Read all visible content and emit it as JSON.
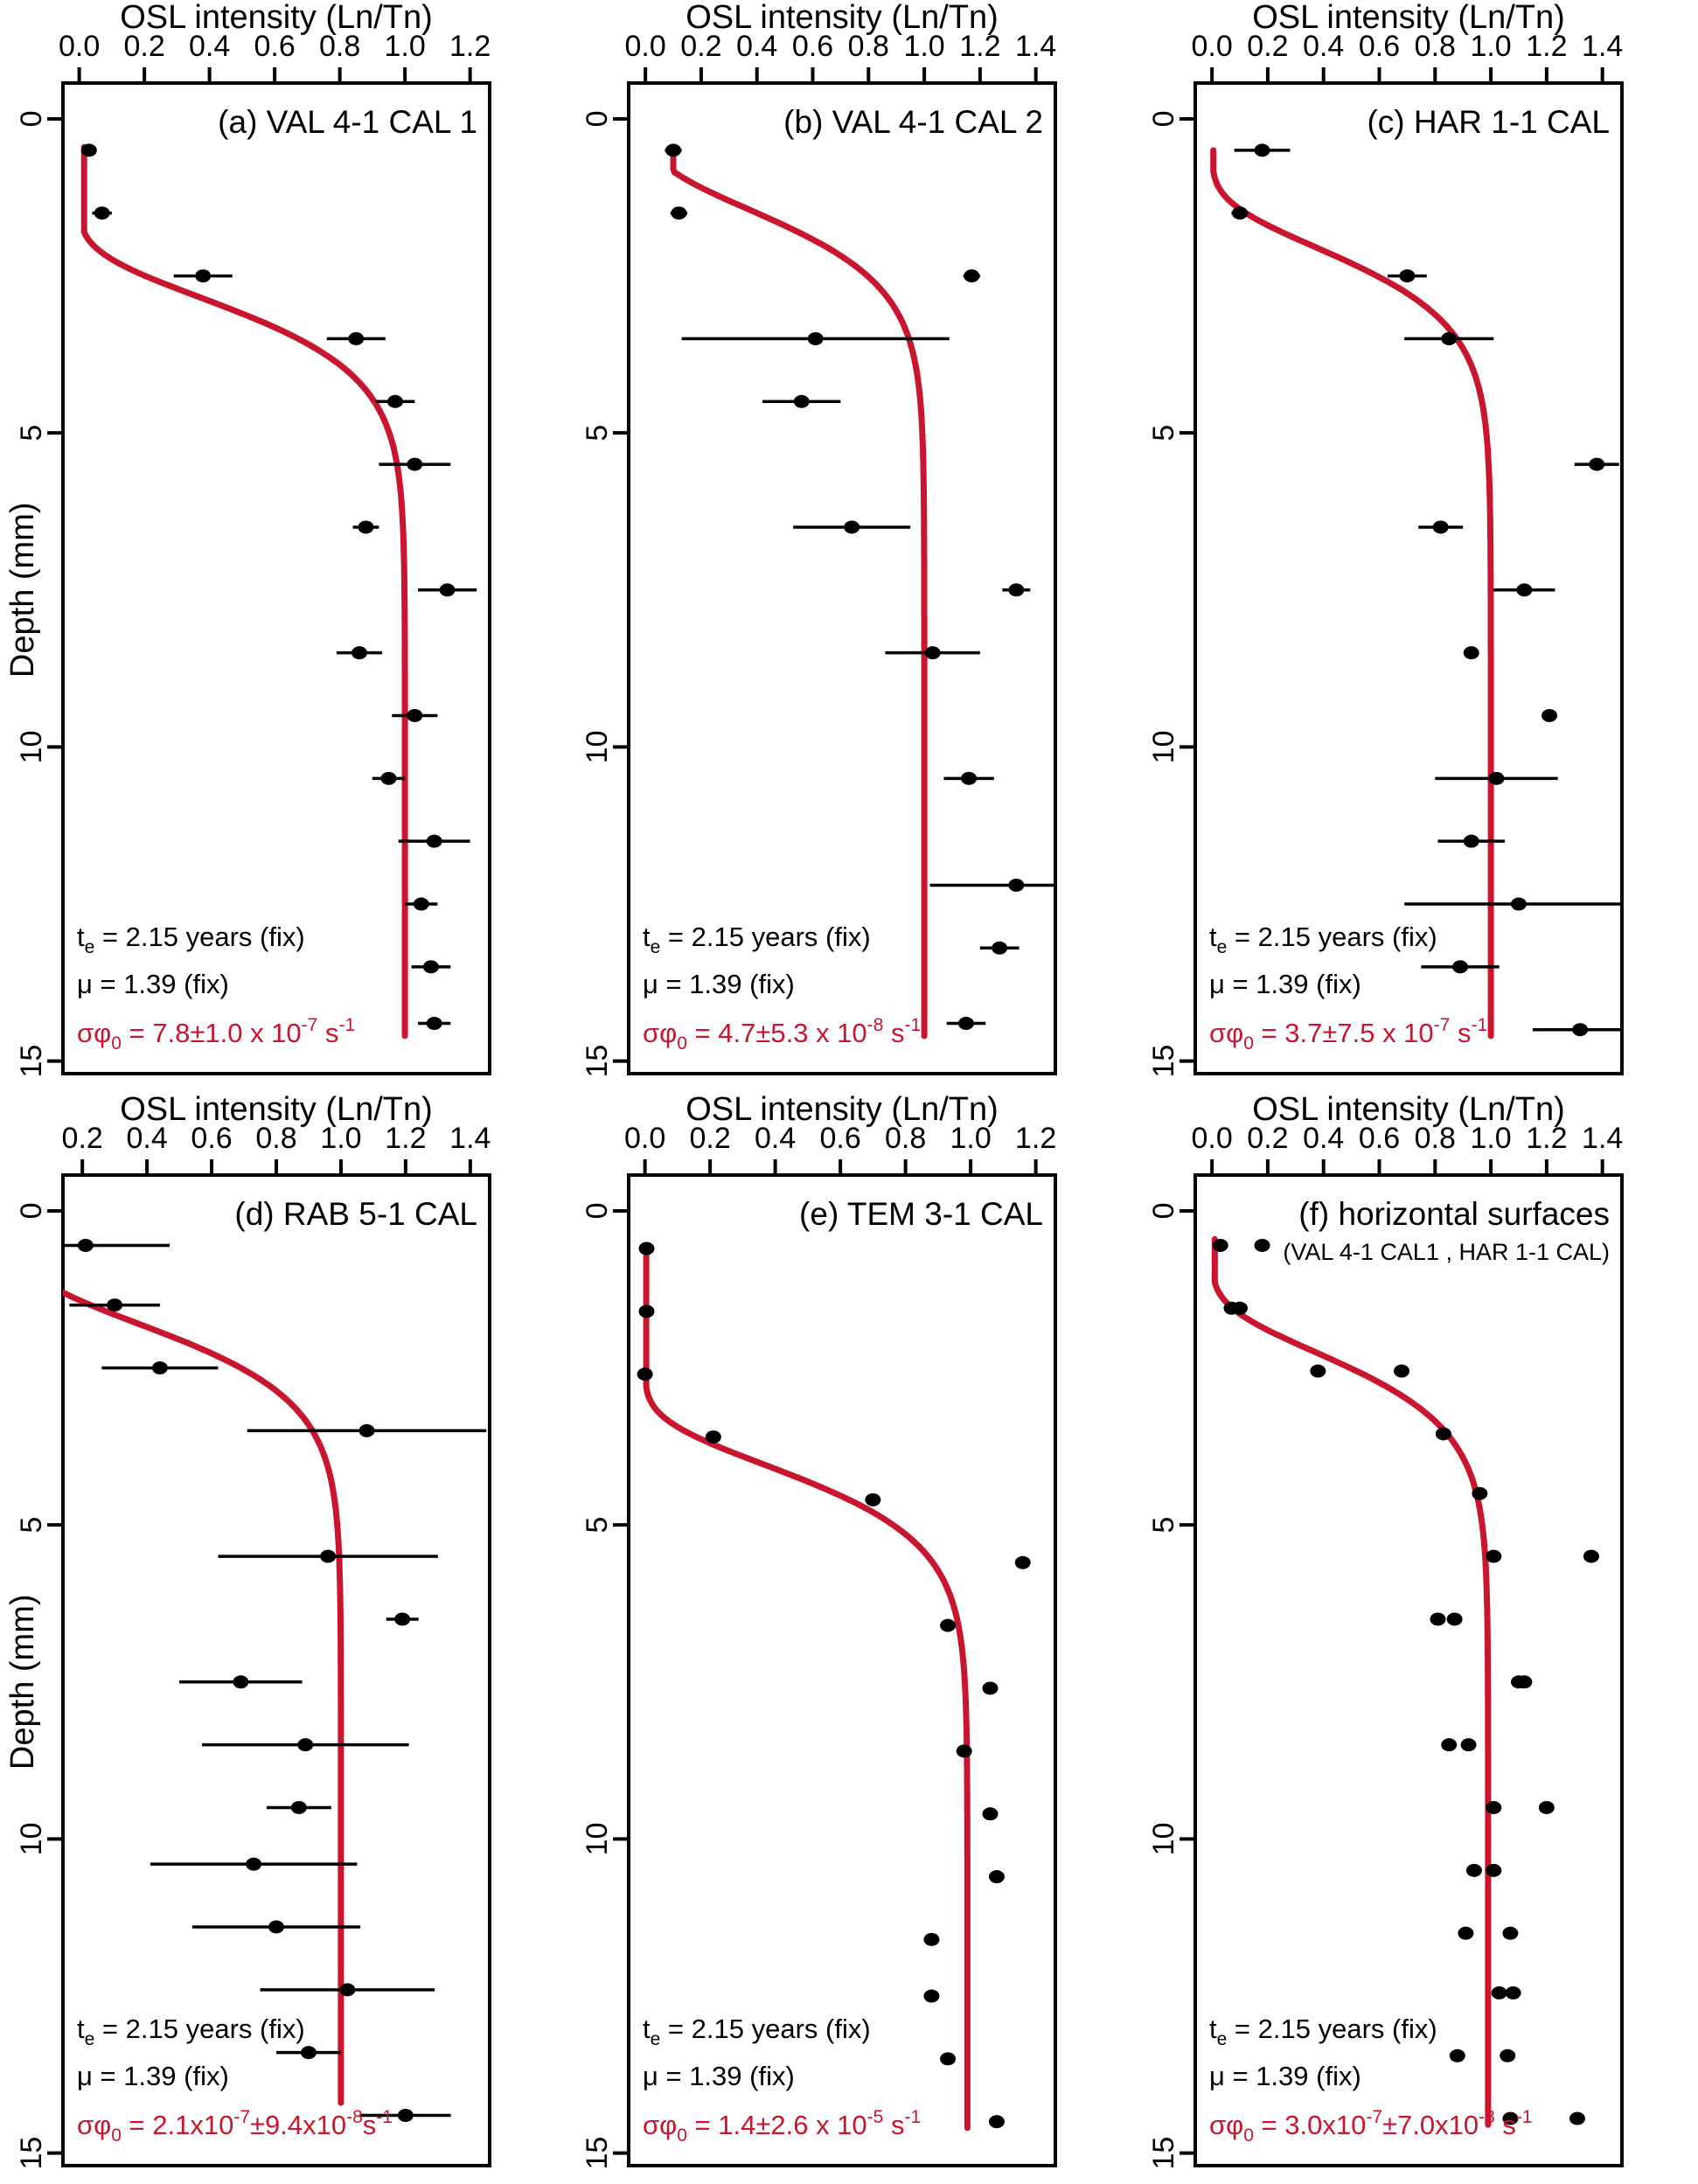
{
  "figure": {
    "x_axis_title": "OSL intensity (Ln/Tn)",
    "y_axis_title": "Depth (mm)",
    "colors": {
      "curve_red": "#c9152e",
      "points_black": "#000000",
      "text_black": "#000000",
      "background": "#ffffff"
    }
  },
  "chart_data": [
    {
      "id": "a",
      "type": "scatter",
      "title": "(a) VAL 4-1 CAL 1",
      "subtitle": null,
      "xlabel": "OSL intensity (Ln/Tn)",
      "ylabel": "Depth (mm)",
      "show_ylabel": true,
      "x_ticks": {
        "values": [
          0.0,
          0.2,
          0.4,
          0.6,
          0.8,
          1.0,
          1.2
        ],
        "labels": [
          "0.0",
          "0.2",
          "0.4",
          "0.6",
          "0.8",
          "1.0",
          "1.2"
        ]
      },
      "y_ticks": {
        "values": [
          0,
          5,
          10,
          15
        ],
        "labels": [
          "0",
          "5",
          "10",
          "15"
        ]
      },
      "x_range": [
        -0.05,
        1.26
      ],
      "y_range": [
        -0.57,
        15.2
      ],
      "points": [
        [
          0.03,
          0.5,
          0.02
        ],
        [
          0.07,
          1.5,
          0.03
        ],
        [
          0.38,
          2.5,
          0.09
        ],
        [
          0.85,
          3.5,
          0.09
        ],
        [
          0.97,
          4.5,
          0.06
        ],
        [
          1.03,
          5.5,
          0.11
        ],
        [
          0.88,
          6.5,
          0.04
        ],
        [
          1.13,
          7.5,
          0.09
        ],
        [
          0.86,
          8.5,
          0.07
        ],
        [
          1.03,
          9.5,
          0.07
        ],
        [
          0.95,
          10.5,
          0.05
        ],
        [
          1.09,
          11.5,
          0.11
        ],
        [
          1.05,
          12.5,
          0.05
        ],
        [
          1.08,
          13.5,
          0.06
        ],
        [
          1.09,
          14.4,
          0.05
        ]
      ],
      "curve": {
        "plateau": 1.0,
        "half_depth": 3.1,
        "steepness": 1.39,
        "depth_start": 0.45,
        "depth_end": 14.6,
        "min_value": 0.015
      },
      "annotation": {
        "te": [
          {
            "t": "t"
          },
          {
            "t": "e",
            "sub": true
          },
          {
            "t": " = 2.15 years (fix)"
          }
        ],
        "mu": [
          {
            "t": "μ = 1.39 (fix)"
          }
        ],
        "sigma": [
          {
            "t": "σφ"
          },
          {
            "t": "0",
            "sub": true
          },
          {
            "t": " = 7.8±1.0 x 10"
          },
          {
            "t": "-7",
            "sup": true
          },
          {
            "t": " s"
          },
          {
            "t": "-1",
            "sup": true
          }
        ]
      }
    },
    {
      "id": "b",
      "type": "scatter",
      "title": "(b) VAL 4-1 CAL 2",
      "subtitle": null,
      "xlabel": "OSL intensity (Ln/Tn)",
      "ylabel": "Depth (mm)",
      "show_ylabel": false,
      "x_ticks": {
        "values": [
          0.0,
          0.2,
          0.4,
          0.6,
          0.8,
          1.0,
          1.2,
          1.4
        ],
        "labels": [
          "0.0",
          "0.2",
          "0.4",
          "0.6",
          "0.8",
          "1.0",
          "1.2",
          "1.4"
        ]
      },
      "y_ticks": {
        "values": [
          0,
          5,
          10,
          15
        ],
        "labels": [
          "0",
          "5",
          "10",
          "15"
        ]
      },
      "x_range": [
        -0.06,
        1.47
      ],
      "y_range": [
        -0.57,
        15.2
      ],
      "points": [
        [
          0.1,
          0.5,
          0.03
        ],
        [
          0.12,
          1.5,
          0.03
        ],
        [
          1.17,
          2.5,
          0.03
        ],
        [
          0.61,
          3.5,
          0.48
        ],
        [
          0.56,
          4.5,
          0.14
        ],
        [
          0.74,
          6.5,
          0.21
        ],
        [
          1.33,
          7.5,
          0.05
        ],
        [
          1.03,
          8.5,
          0.17
        ],
        [
          1.16,
          10.5,
          0.09
        ],
        [
          1.33,
          12.2,
          0.31
        ],
        [
          1.27,
          13.2,
          0.07
        ],
        [
          1.15,
          14.4,
          0.07
        ]
      ],
      "curve": {
        "plateau": 1.0,
        "half_depth": 1.7,
        "steepness": 1.39,
        "depth_start": 0.55,
        "depth_end": 14.6,
        "min_value": 0.1
      },
      "annotation": {
        "te": [
          {
            "t": "t"
          },
          {
            "t": "e",
            "sub": true
          },
          {
            "t": " = 2.15 years (fix)"
          }
        ],
        "mu": [
          {
            "t": "μ = 1.39 (fix)"
          }
        ],
        "sigma": [
          {
            "t": "σφ"
          },
          {
            "t": "0",
            "sub": true
          },
          {
            "t": " = 4.7±5.3 x 10"
          },
          {
            "t": "-8",
            "sup": true
          },
          {
            "t": " s"
          },
          {
            "t": "-1",
            "sup": true
          }
        ]
      }
    },
    {
      "id": "c",
      "type": "scatter",
      "title": "(c) HAR 1-1 CAL",
      "subtitle": null,
      "xlabel": "OSL intensity (Ln/Tn)",
      "ylabel": "Depth (mm)",
      "show_ylabel": false,
      "x_ticks": {
        "values": [
          0.0,
          0.2,
          0.4,
          0.6,
          0.8,
          1.0,
          1.2,
          1.4
        ],
        "labels": [
          "0.0",
          "0.2",
          "0.4",
          "0.6",
          "0.8",
          "1.0",
          "1.2",
          "1.4"
        ]
      },
      "y_ticks": {
        "values": [
          0,
          5,
          10,
          15
        ],
        "labels": [
          "0",
          "5",
          "10",
          "15"
        ]
      },
      "x_range": [
        -0.06,
        1.47
      ],
      "y_range": [
        -0.57,
        15.2
      ],
      "points": [
        [
          0.18,
          0.5,
          0.1
        ],
        [
          0.1,
          1.5,
          0.03
        ],
        [
          0.7,
          2.5,
          0.07
        ],
        [
          0.85,
          3.5,
          0.16
        ],
        [
          1.38,
          5.5,
          0.08
        ],
        [
          0.82,
          6.5,
          0.08
        ],
        [
          1.12,
          7.5,
          0.11
        ],
        [
          0.93,
          8.5,
          0.02
        ],
        [
          1.21,
          9.5,
          0.02
        ],
        [
          1.02,
          10.5,
          0.22
        ],
        [
          0.93,
          11.5,
          0.12
        ],
        [
          1.1,
          12.5,
          0.41
        ],
        [
          0.89,
          13.5,
          0.14
        ],
        [
          1.32,
          14.5,
          0.17
        ]
      ],
      "curve": {
        "plateau": 1.0,
        "half_depth": 2.3,
        "steepness": 1.39,
        "depth_start": 0.5,
        "depth_end": 14.6,
        "min_value": 0.005
      },
      "annotation": {
        "te": [
          {
            "t": "t"
          },
          {
            "t": "e",
            "sub": true
          },
          {
            "t": " = 2.15 years (fix)"
          }
        ],
        "mu": [
          {
            "t": "μ = 1.39 (fix)"
          }
        ],
        "sigma": [
          {
            "t": "σφ"
          },
          {
            "t": "0",
            "sub": true
          },
          {
            "t": " = 3.7±7.5 x 10"
          },
          {
            "t": "-7",
            "sup": true
          },
          {
            "t": " s"
          },
          {
            "t": "-1",
            "sup": true
          }
        ]
      }
    },
    {
      "id": "d",
      "type": "scatter",
      "title": "(d) RAB 5-1 CAL",
      "subtitle": null,
      "xlabel": "OSL intensity (Ln/Tn)",
      "ylabel": "Depth (mm)",
      "show_ylabel": true,
      "x_ticks": {
        "values": [
          0.2,
          0.4,
          0.6,
          0.8,
          1.0,
          1.2,
          1.4
        ],
        "labels": [
          "0.2",
          "0.4",
          "0.6",
          "0.8",
          "1.0",
          "1.2",
          "1.4"
        ]
      },
      "y_ticks": {
        "values": [
          0,
          5,
          10,
          15
        ],
        "labels": [
          "0",
          "5",
          "10",
          "15"
        ]
      },
      "x_range": [
        0.14,
        1.46
      ],
      "y_range": [
        -0.57,
        15.2
      ],
      "points": [
        [
          0.21,
          0.55,
          0.26
        ],
        [
          0.3,
          1.5,
          0.14
        ],
        [
          0.44,
          2.5,
          0.18
        ],
        [
          1.08,
          3.5,
          0.37
        ],
        [
          0.96,
          5.5,
          0.34
        ],
        [
          1.19,
          6.5,
          0.05
        ],
        [
          0.69,
          7.5,
          0.19
        ],
        [
          0.89,
          8.5,
          0.32
        ],
        [
          0.87,
          9.5,
          0.1
        ],
        [
          0.73,
          10.4,
          0.32
        ],
        [
          0.8,
          11.4,
          0.26
        ],
        [
          1.02,
          12.4,
          0.27
        ],
        [
          0.9,
          13.4,
          0.1
        ],
        [
          1.2,
          14.4,
          0.14
        ]
      ],
      "curve": {
        "plateau": 1.0,
        "half_depth": 2.05,
        "steepness": 1.39,
        "depth_start": 1.2,
        "depth_end": 14.2,
        "min_value": 0.0
      },
      "annotation": {
        "te": [
          {
            "t": "t"
          },
          {
            "t": "e",
            "sub": true
          },
          {
            "t": " = 2.15 years (fix)"
          }
        ],
        "mu": [
          {
            "t": "μ = 1.39 (fix)"
          }
        ],
        "sigma": [
          {
            "t": "σφ"
          },
          {
            "t": "0",
            "sub": true
          },
          {
            "t": " = 2.1x10"
          },
          {
            "t": "-7",
            "sup": true
          },
          {
            "t": "±9.4x10"
          },
          {
            "t": "-8",
            "sup": true
          },
          {
            "t": "s"
          },
          {
            "t": "-1",
            "sup": true
          }
        ]
      }
    },
    {
      "id": "e",
      "type": "scatter",
      "title": "(e) TEM 3-1 CAL",
      "subtitle": null,
      "xlabel": "OSL intensity (Ln/Tn)",
      "ylabel": "Depth (mm)",
      "show_ylabel": false,
      "x_ticks": {
        "values": [
          0.0,
          0.2,
          0.4,
          0.6,
          0.8,
          1.0,
          1.2
        ],
        "labels": [
          "0.0",
          "0.2",
          "0.4",
          "0.6",
          "0.8",
          "1.0",
          "1.2"
        ]
      },
      "y_ticks": {
        "values": [
          0,
          5,
          10,
          15
        ],
        "labels": [
          "0",
          "5",
          "10",
          "15"
        ]
      },
      "x_range": [
        -0.05,
        1.26
      ],
      "y_range": [
        -0.57,
        15.2
      ],
      "points": [
        [
          0.005,
          0.6,
          0
        ],
        [
          0.005,
          1.6,
          0
        ],
        [
          0.0,
          2.6,
          0
        ],
        [
          0.21,
          3.6,
          0
        ],
        [
          0.7,
          4.6,
          0
        ],
        [
          1.16,
          5.6,
          0
        ],
        [
          0.93,
          6.6,
          0
        ],
        [
          1.06,
          7.6,
          0
        ],
        [
          0.98,
          8.6,
          0
        ],
        [
          1.06,
          9.6,
          0
        ],
        [
          1.08,
          10.6,
          0
        ],
        [
          0.88,
          11.6,
          0
        ],
        [
          0.88,
          12.5,
          0
        ],
        [
          0.93,
          13.5,
          0
        ],
        [
          1.08,
          14.5,
          0
        ]
      ],
      "curve": {
        "plateau": 0.99,
        "half_depth": 4.3,
        "steepness": 1.39,
        "depth_start": 0.6,
        "depth_end": 14.6,
        "min_value": 0.004
      },
      "annotation": {
        "te": [
          {
            "t": "t"
          },
          {
            "t": "e",
            "sub": true
          },
          {
            "t": " = 2.15 years (fix)"
          }
        ],
        "mu": [
          {
            "t": "μ = 1.39 (fix)"
          }
        ],
        "sigma": [
          {
            "t": "σφ"
          },
          {
            "t": "0",
            "sub": true
          },
          {
            "t": " = 1.4±2.6 x 10"
          },
          {
            "t": "-5",
            "sup": true
          },
          {
            "t": " s"
          },
          {
            "t": "-1",
            "sup": true
          }
        ]
      }
    },
    {
      "id": "f",
      "type": "scatter",
      "title": "(f) horizontal surfaces",
      "subtitle": "(VAL 4-1 CAL1 , HAR 1-1 CAL)",
      "xlabel": "OSL intensity (Ln/Tn)",
      "ylabel": "Depth (mm)",
      "show_ylabel": false,
      "x_ticks": {
        "values": [
          0.0,
          0.2,
          0.4,
          0.6,
          0.8,
          1.0,
          1.2,
          1.4
        ],
        "labels": [
          "0.0",
          "0.2",
          "0.4",
          "0.6",
          "0.8",
          "1.0",
          "1.2",
          "1.4"
        ]
      },
      "y_ticks": {
        "values": [
          0,
          5,
          10,
          15
        ],
        "labels": [
          "0",
          "5",
          "10",
          "15"
        ]
      },
      "x_range": [
        -0.06,
        1.47
      ],
      "y_range": [
        -0.57,
        15.2
      ],
      "points": [
        [
          0.03,
          0.55,
          0
        ],
        [
          0.18,
          0.55,
          0
        ],
        [
          0.07,
          1.55,
          0
        ],
        [
          0.1,
          1.55,
          0
        ],
        [
          0.38,
          2.55,
          0
        ],
        [
          0.68,
          2.55,
          0
        ],
        [
          0.83,
          3.55,
          0
        ],
        [
          0.96,
          4.5,
          0
        ],
        [
          1.01,
          5.5,
          0
        ],
        [
          1.36,
          5.5,
          0
        ],
        [
          0.81,
          6.5,
          0
        ],
        [
          0.87,
          6.5,
          0
        ],
        [
          1.1,
          7.5,
          0
        ],
        [
          1.12,
          7.5,
          0
        ],
        [
          0.85,
          8.5,
          0
        ],
        [
          0.92,
          8.5,
          0
        ],
        [
          1.01,
          9.5,
          0
        ],
        [
          1.2,
          9.5,
          0
        ],
        [
          0.94,
          10.5,
          0
        ],
        [
          1.01,
          10.5,
          0
        ],
        [
          0.91,
          11.5,
          0
        ],
        [
          1.07,
          11.5,
          0
        ],
        [
          1.03,
          12.45,
          0
        ],
        [
          1.08,
          12.45,
          0
        ],
        [
          0.88,
          13.45,
          0
        ],
        [
          1.06,
          13.45,
          0
        ],
        [
          1.07,
          14.45,
          0
        ],
        [
          1.31,
          14.45,
          0
        ]
      ],
      "curve": {
        "plateau": 0.99,
        "half_depth": 2.5,
        "steepness": 1.39,
        "depth_start": 0.45,
        "depth_end": 14.55,
        "min_value": 0.01
      },
      "annotation": {
        "te": [
          {
            "t": "t"
          },
          {
            "t": "e",
            "sub": true
          },
          {
            "t": " = 2.15 years (fix)"
          }
        ],
        "mu": [
          {
            "t": "μ = 1.39 (fix)"
          }
        ],
        "sigma": [
          {
            "t": "σφ"
          },
          {
            "t": "0",
            "sub": true
          },
          {
            "t": " = 3.0x10"
          },
          {
            "t": "-7",
            "sup": true
          },
          {
            "t": "±7.0x10"
          },
          {
            "t": "-8",
            "sup": true
          },
          {
            "t": " s"
          },
          {
            "t": "-1",
            "sup": true
          }
        ]
      }
    }
  ]
}
